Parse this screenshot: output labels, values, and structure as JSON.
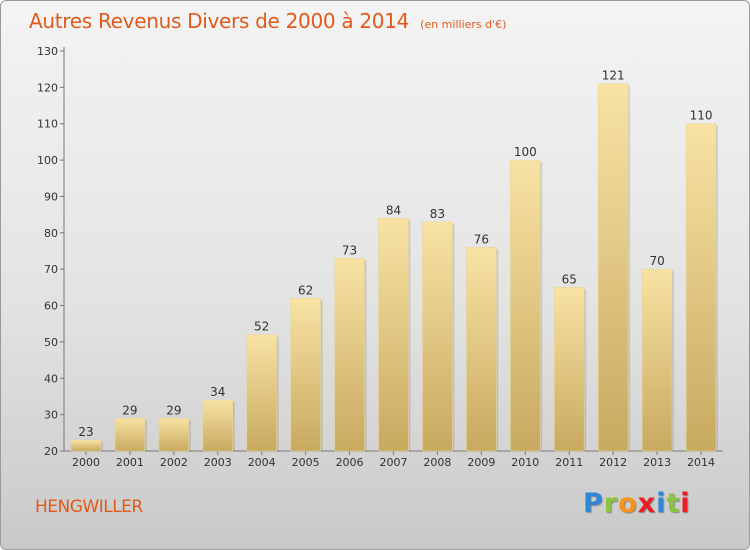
{
  "header": {
    "title": "Autres Revenus Divers de 2000 à 2014",
    "unit_note": "(en milliers d'€)"
  },
  "footer": {
    "commune": "HENGWILLER",
    "logo": "Proxiti"
  },
  "colors": {
    "title": "#e05a1b",
    "bar_light": "#f8e3a4",
    "bar_dark": "#c8a960",
    "label": "#333333"
  },
  "chart_data": {
    "type": "bar",
    "title": "Autres Revenus Divers de 2000 à 2014",
    "subtitle": "(en milliers d'€)",
    "xlabel": "",
    "ylabel": "",
    "categories": [
      "2000",
      "2001",
      "2002",
      "2003",
      "2004",
      "2005",
      "2006",
      "2007",
      "2008",
      "2009",
      "2010",
      "2011",
      "2012",
      "2013",
      "2014"
    ],
    "values": [
      23,
      29,
      29,
      34,
      52,
      62,
      73,
      84,
      83,
      76,
      100,
      65,
      121,
      70,
      110
    ],
    "ylim": [
      20,
      130
    ],
    "yticks": [
      20,
      30,
      40,
      50,
      60,
      70,
      80,
      90,
      100,
      110,
      120,
      130
    ],
    "grid": false,
    "legend": "none"
  }
}
